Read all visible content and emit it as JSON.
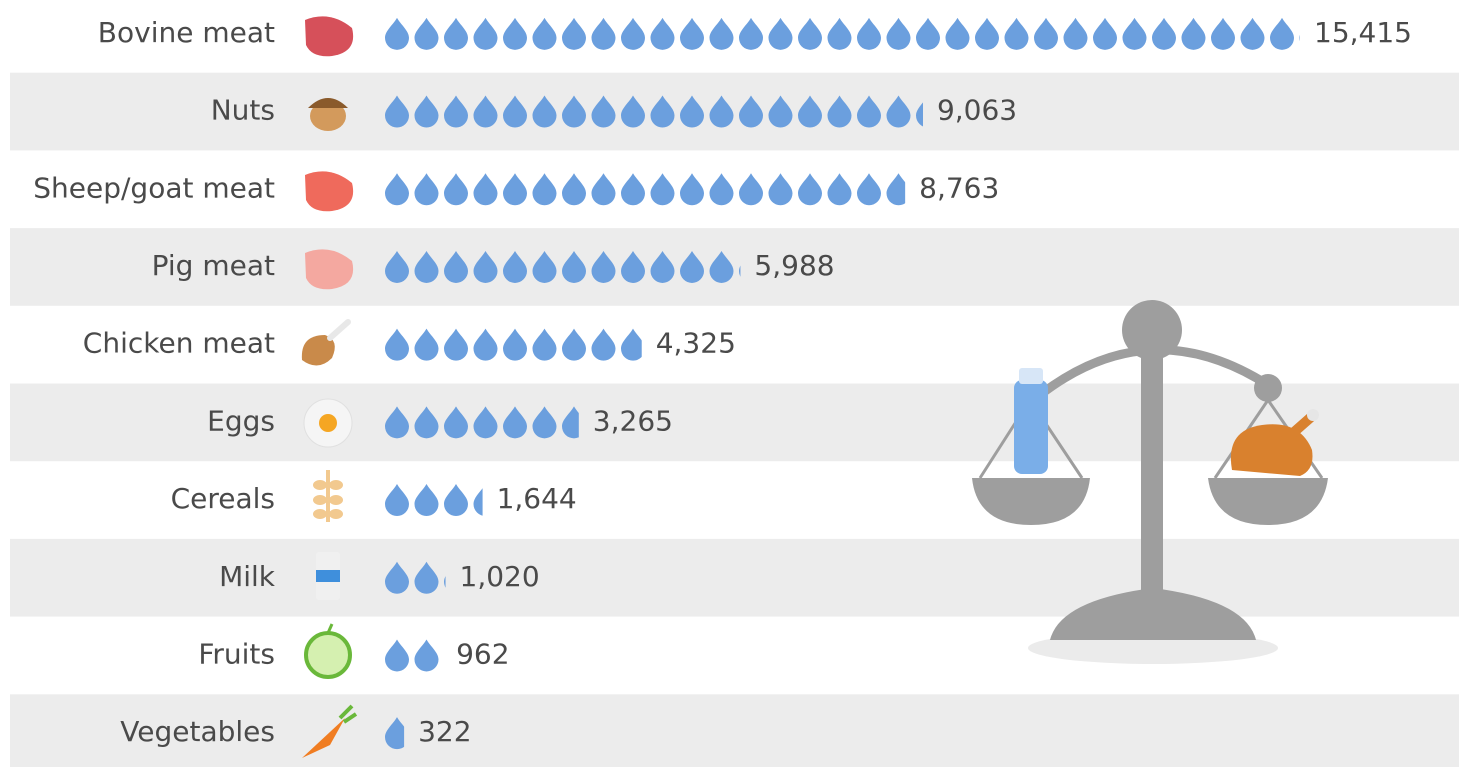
{
  "chart_data": {
    "type": "pictogram",
    "categories": [
      "Bovine meat",
      "Nuts",
      "Sheep/goat meat",
      "Pig meat",
      "Chicken meat",
      "Eggs",
      "Cereals",
      "Milk",
      "Fruits",
      "Vegetables"
    ],
    "values": [
      15415,
      9063,
      8763,
      5988,
      4325,
      3265,
      1644,
      1020,
      962,
      322
    ],
    "value_labels": [
      "15,415",
      "9,063",
      "8,763",
      "5,988",
      "4,325",
      "3,265",
      "1,644",
      "1,020",
      "962",
      "322"
    ],
    "color": "#6b9fde"
  }
}
